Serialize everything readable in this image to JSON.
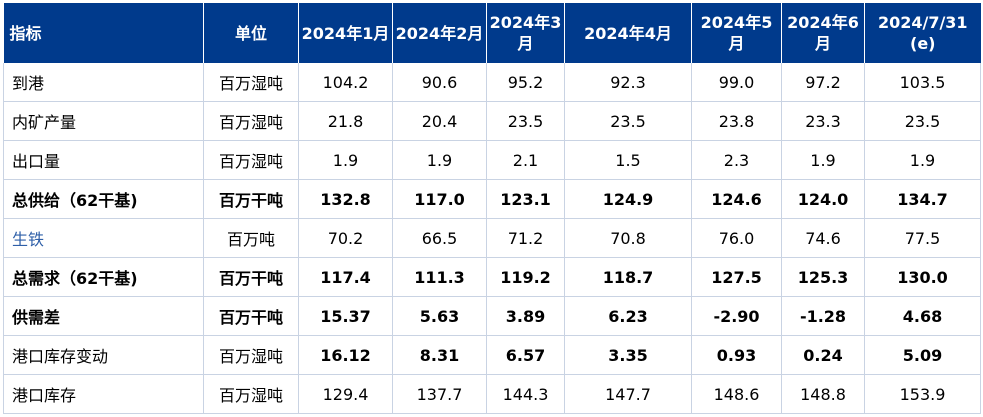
{
  "colors": {
    "header_bg": "#003a8c",
    "header_text": "#ffffff",
    "positive_highlight": "#a50021",
    "negative_highlight": "#12a150",
    "link_blue": "#2e5fa8"
  },
  "table": {
    "headers": [
      "指标",
      "单位",
      "2024年1月",
      "2024年2月",
      "2024年3月",
      "2024年4月",
      "2024年5月",
      "2024年6月",
      "2024/7/31 (e)"
    ],
    "rows": [
      {
        "label": "到港",
        "unit": "百万湿吨",
        "values": [
          "104.2",
          "90.6",
          "95.2",
          "92.3",
          "99.0",
          "97.2",
          "103.5"
        ]
      },
      {
        "label": "内矿产量",
        "unit": "百万湿吨",
        "values": [
          "21.8",
          "20.4",
          "23.5",
          "23.5",
          "23.8",
          "23.3",
          "23.5"
        ]
      },
      {
        "label": "出口量",
        "unit": "百万湿吨",
        "values": [
          "1.9",
          "1.9",
          "2.1",
          "1.5",
          "2.3",
          "1.9",
          "1.9"
        ]
      },
      {
        "label": "总供给（62干基)",
        "unit": "百万干吨",
        "values": [
          "132.8",
          "117.0",
          "123.1",
          "124.9",
          "124.6",
          "124.0",
          "134.7"
        ]
      },
      {
        "label": "生铁",
        "unit": "百万吨",
        "values": [
          "70.2",
          "66.5",
          "71.2",
          "70.8",
          "76.0",
          "74.6",
          "77.5"
        ]
      },
      {
        "label": "总需求（62干基)",
        "unit": "百万干吨",
        "values": [
          "117.4",
          "111.3",
          "119.2",
          "118.7",
          "127.5",
          "125.3",
          "130.0"
        ]
      },
      {
        "label": "供需差",
        "unit": "百万干吨",
        "values": [
          "15.37",
          "5.63",
          "3.89",
          "6.23",
          "-2.90",
          "-1.28",
          "4.68"
        ]
      },
      {
        "label": "港口库存变动",
        "unit": "百万湿吨",
        "values": [
          "16.12",
          "8.31",
          "6.57",
          "3.35",
          "0.93",
          "0.24",
          "5.09"
        ]
      },
      {
        "label": "港口库存",
        "unit": "百万湿吨",
        "values": [
          "129.4",
          "137.7",
          "144.3",
          "147.7",
          "148.6",
          "148.8",
          "153.9"
        ]
      }
    ]
  }
}
